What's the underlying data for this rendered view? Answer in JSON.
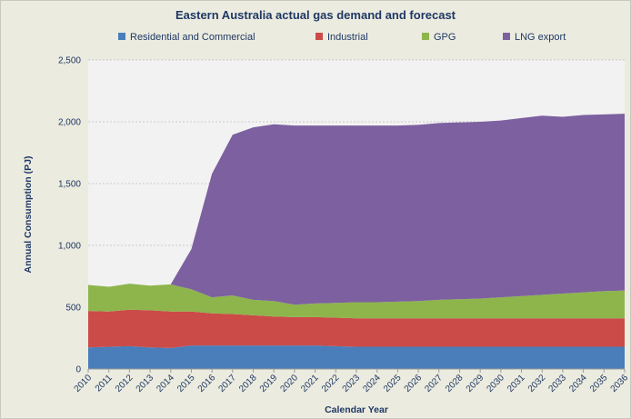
{
  "chart_data": {
    "type": "area",
    "stacked": true,
    "title": "Eastern Australia actual gas demand and forecast",
    "xlabel": "Calendar Year",
    "ylabel": "Annual Consumption (PJ)",
    "ylim": [
      0,
      2500
    ],
    "yticks": [
      0,
      500,
      1000,
      1500,
      2000,
      2500
    ],
    "ytick_labels": [
      "0",
      "500",
      "1,000",
      "1,500",
      "2,000",
      "2,500"
    ],
    "grid": true,
    "legend_position": "top",
    "x": [
      "2010",
      "2011",
      "2012",
      "2013",
      "2014",
      "2015",
      "2016",
      "2017",
      "2018",
      "2019",
      "2020",
      "2021",
      "2022",
      "2023",
      "2024",
      "2025",
      "2026",
      "2027",
      "2028",
      "2029",
      "2030",
      "2031",
      "2032",
      "2033",
      "2034",
      "2035",
      "2036"
    ],
    "series": [
      {
        "name": "Residential and Commercial",
        "color": "#4a7ebb",
        "values": [
          175,
          180,
          185,
          175,
          170,
          190,
          190,
          190,
          190,
          190,
          190,
          190,
          185,
          180,
          180,
          180,
          180,
          180,
          180,
          180,
          180,
          180,
          180,
          180,
          180,
          180,
          180
        ]
      },
      {
        "name": "Industrial",
        "color": "#cb4b48",
        "values": [
          295,
          285,
          295,
          300,
          295,
          275,
          260,
          255,
          245,
          235,
          230,
          230,
          230,
          230,
          230,
          230,
          230,
          230,
          230,
          230,
          230,
          230,
          230,
          230,
          230,
          230,
          230
        ]
      },
      {
        "name": "GPG",
        "color": "#8db54c",
        "values": [
          210,
          200,
          210,
          200,
          220,
          180,
          130,
          150,
          125,
          125,
          100,
          110,
          120,
          130,
          130,
          135,
          140,
          150,
          155,
          160,
          170,
          180,
          190,
          200,
          210,
          220,
          225
        ]
      },
      {
        "name": "LNG export",
        "color": "#7d60a0",
        "values": [
          0,
          0,
          0,
          0,
          0,
          325,
          1000,
          1300,
          1395,
          1430,
          1450,
          1440,
          1435,
          1430,
          1430,
          1425,
          1425,
          1430,
          1430,
          1430,
          1430,
          1440,
          1450,
          1430,
          1435,
          1430,
          1430
        ]
      }
    ]
  }
}
